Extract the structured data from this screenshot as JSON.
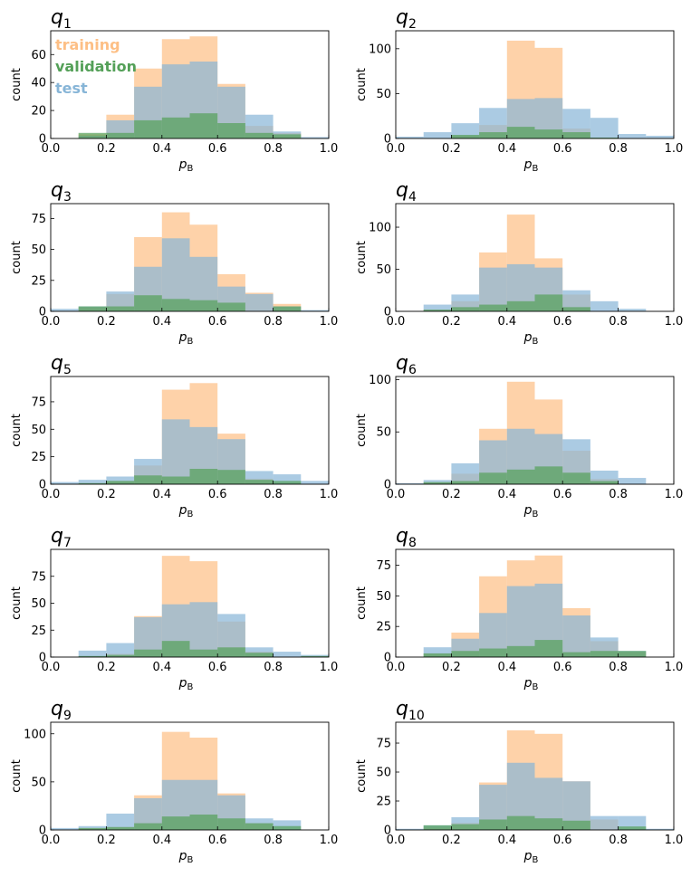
{
  "legend": [
    {
      "name": "training",
      "color": "#fdbf85"
    },
    {
      "name": "validation",
      "color": "#54a058"
    },
    {
      "name": "test",
      "color": "#87b5d7"
    }
  ],
  "chart_data": [
    {
      "type": "histogram",
      "title_symbol": "q",
      "title_index": "1",
      "xlabel": "p",
      "xlabel_sub": "B",
      "ylabel": "count",
      "xlim": [
        0.0,
        1.0
      ],
      "ylim": [
        0,
        77
      ],
      "yticks": [
        0,
        20,
        40,
        60
      ],
      "xticks": [
        "0.0",
        "0.2",
        "0.4",
        "0.6",
        "0.8",
        "1.0"
      ],
      "bin_edges": [
        0.0,
        0.1,
        0.2,
        0.3,
        0.4,
        0.5,
        0.6,
        0.7,
        0.8,
        0.9,
        1.0
      ],
      "series": [
        {
          "name": "training",
          "values": [
            0,
            3,
            17,
            50,
            71,
            73,
            39,
            9,
            4,
            0
          ]
        },
        {
          "name": "test",
          "values": [
            0,
            2,
            13,
            37,
            53,
            55,
            37,
            17,
            5,
            1
          ]
        },
        {
          "name": "validation",
          "values": [
            0,
            4,
            4,
            13,
            15,
            18,
            11,
            4,
            3,
            0
          ]
        }
      ]
    },
    {
      "type": "histogram",
      "title_symbol": "q",
      "title_index": "2",
      "xlabel": "p",
      "xlabel_sub": "B",
      "ylabel": "count",
      "xlim": [
        0.0,
        1.0
      ],
      "ylim": [
        0,
        120
      ],
      "yticks": [
        0,
        50,
        100
      ],
      "xticks": [
        "0.0",
        "0.2",
        "0.4",
        "0.6",
        "0.8",
        "1.0"
      ],
      "bin_edges": [
        0.0,
        0.1,
        0.2,
        0.3,
        0.4,
        0.5,
        0.6,
        0.7,
        0.8,
        0.9,
        1.0
      ],
      "series": [
        {
          "name": "training",
          "values": [
            0,
            0,
            3,
            15,
            109,
            101,
            11,
            0,
            0,
            0
          ]
        },
        {
          "name": "test",
          "values": [
            2,
            7,
            17,
            34,
            44,
            45,
            33,
            23,
            5,
            3
          ]
        },
        {
          "name": "validation",
          "values": [
            0,
            0,
            4,
            7,
            13,
            10,
            7,
            1,
            0,
            0
          ]
        }
      ]
    },
    {
      "type": "histogram",
      "title_symbol": "q",
      "title_index": "3",
      "xlabel": "p",
      "xlabel_sub": "B",
      "ylabel": "count",
      "xlim": [
        0.0,
        1.0
      ],
      "ylim": [
        0,
        87
      ],
      "yticks": [
        0,
        25,
        50,
        75
      ],
      "xticks": [
        "0.0",
        "0.2",
        "0.4",
        "0.6",
        "0.8",
        "1.0"
      ],
      "bin_edges": [
        0.0,
        0.1,
        0.2,
        0.3,
        0.4,
        0.5,
        0.6,
        0.7,
        0.8,
        0.9,
        1.0
      ],
      "series": [
        {
          "name": "training",
          "values": [
            0,
            3,
            14,
            60,
            80,
            70,
            30,
            15,
            6,
            0
          ]
        },
        {
          "name": "test",
          "values": [
            2,
            4,
            16,
            36,
            59,
            44,
            20,
            14,
            4,
            1
          ]
        },
        {
          "name": "validation",
          "values": [
            0,
            4,
            4,
            13,
            10,
            9,
            7,
            0,
            4,
            0
          ]
        }
      ]
    },
    {
      "type": "histogram",
      "title_symbol": "q",
      "title_index": "4",
      "xlabel": "p",
      "xlabel_sub": "B",
      "ylabel": "count",
      "xlim": [
        0.0,
        1.0
      ],
      "ylim": [
        0,
        128
      ],
      "yticks": [
        0,
        50,
        100
      ],
      "xticks": [
        "0.0",
        "0.2",
        "0.4",
        "0.6",
        "0.8",
        "1.0"
      ],
      "bin_edges": [
        0.0,
        0.1,
        0.2,
        0.3,
        0.4,
        0.5,
        0.6,
        0.7,
        0.8,
        0.9,
        1.0
      ],
      "series": [
        {
          "name": "training",
          "values": [
            0,
            2,
            12,
            70,
            115,
            63,
            20,
            0,
            0,
            0
          ]
        },
        {
          "name": "test",
          "values": [
            0,
            8,
            20,
            52,
            56,
            52,
            25,
            12,
            3,
            0
          ]
        },
        {
          "name": "validation",
          "values": [
            0,
            2,
            5,
            8,
            12,
            20,
            5,
            0,
            0,
            0
          ]
        }
      ]
    },
    {
      "type": "histogram",
      "title_symbol": "q",
      "title_index": "5",
      "xlabel": "p",
      "xlabel_sub": "B",
      "ylabel": "count",
      "xlim": [
        0.0,
        1.0
      ],
      "ylim": [
        0,
        98
      ],
      "yticks": [
        0,
        25,
        50,
        75
      ],
      "xticks": [
        "0.0",
        "0.2",
        "0.4",
        "0.6",
        "0.8",
        "1.0"
      ],
      "bin_edges": [
        0.0,
        0.1,
        0.2,
        0.3,
        0.4,
        0.5,
        0.6,
        0.7,
        0.8,
        0.9,
        1.0
      ],
      "series": [
        {
          "name": "training",
          "values": [
            0,
            0,
            3,
            17,
            86,
            92,
            46,
            5,
            0,
            0
          ]
        },
        {
          "name": "test",
          "values": [
            2,
            4,
            7,
            23,
            59,
            52,
            41,
            12,
            9,
            3
          ]
        },
        {
          "name": "validation",
          "values": [
            0,
            1,
            3,
            8,
            7,
            14,
            13,
            4,
            3,
            0
          ]
        }
      ]
    },
    {
      "type": "histogram",
      "title_symbol": "q",
      "title_index": "6",
      "xlabel": "p",
      "xlabel_sub": "B",
      "ylabel": "count",
      "xlim": [
        0.0,
        1.0
      ],
      "ylim": [
        0,
        103
      ],
      "yticks": [
        0,
        50,
        100
      ],
      "xticks": [
        "0.0",
        "0.2",
        "0.4",
        "0.6",
        "0.8",
        "1.0"
      ],
      "bin_edges": [
        0.0,
        0.1,
        0.2,
        0.3,
        0.4,
        0.5,
        0.6,
        0.7,
        0.8,
        0.9,
        1.0
      ],
      "series": [
        {
          "name": "training",
          "values": [
            0,
            2,
            10,
            53,
            98,
            81,
            32,
            5,
            0,
            0
          ]
        },
        {
          "name": "test",
          "values": [
            1,
            4,
            20,
            42,
            53,
            48,
            43,
            13,
            6,
            0
          ]
        },
        {
          "name": "validation",
          "values": [
            0,
            2,
            3,
            11,
            14,
            17,
            11,
            3,
            0,
            0
          ]
        }
      ]
    },
    {
      "type": "histogram",
      "title_symbol": "q",
      "title_index": "7",
      "xlabel": "p",
      "xlabel_sub": "B",
      "ylabel": "count",
      "xlim": [
        0.0,
        1.0
      ],
      "ylim": [
        0,
        100
      ],
      "yticks": [
        0,
        25,
        50,
        75
      ],
      "xticks": [
        "0.0",
        "0.2",
        "0.4",
        "0.6",
        "0.8",
        "1.0"
      ],
      "bin_edges": [
        0.0,
        0.1,
        0.2,
        0.3,
        0.4,
        0.5,
        0.6,
        0.7,
        0.8,
        0.9,
        1.0
      ],
      "series": [
        {
          "name": "training",
          "values": [
            0,
            0,
            3,
            38,
            94,
            89,
            33,
            5,
            0,
            0
          ]
        },
        {
          "name": "test",
          "values": [
            0,
            6,
            13,
            37,
            49,
            51,
            40,
            9,
            5,
            2
          ]
        },
        {
          "name": "validation",
          "values": [
            0,
            1,
            2,
            7,
            15,
            7,
            9,
            4,
            0,
            1
          ]
        }
      ]
    },
    {
      "type": "histogram",
      "title_symbol": "q",
      "title_index": "8",
      "xlabel": "p",
      "xlabel_sub": "B",
      "ylabel": "count",
      "xlim": [
        0.0,
        1.0
      ],
      "ylim": [
        0,
        88
      ],
      "yticks": [
        0,
        25,
        50,
        75
      ],
      "xticks": [
        "0.0",
        "0.2",
        "0.4",
        "0.6",
        "0.8",
        "1.0"
      ],
      "bin_edges": [
        0.0,
        0.1,
        0.2,
        0.3,
        0.4,
        0.5,
        0.6,
        0.7,
        0.8,
        0.9,
        1.0
      ],
      "series": [
        {
          "name": "training",
          "values": [
            0,
            3,
            20,
            66,
            79,
            83,
            40,
            13,
            4,
            0
          ]
        },
        {
          "name": "test",
          "values": [
            0,
            8,
            15,
            36,
            58,
            60,
            34,
            16,
            5,
            0
          ]
        },
        {
          "name": "validation",
          "values": [
            0,
            3,
            5,
            7,
            9,
            14,
            4,
            5,
            5,
            0
          ]
        }
      ]
    },
    {
      "type": "histogram",
      "title_symbol": "q",
      "title_index": "9",
      "xlabel": "p",
      "xlabel_sub": "B",
      "ylabel": "count",
      "xlim": [
        0.0,
        1.0
      ],
      "ylim": [
        0,
        112
      ],
      "yticks": [
        0,
        50,
        100
      ],
      "xticks": [
        "0.0",
        "0.2",
        "0.4",
        "0.6",
        "0.8",
        "1.0"
      ],
      "bin_edges": [
        0.0,
        0.1,
        0.2,
        0.3,
        0.4,
        0.5,
        0.6,
        0.7,
        0.8,
        0.9,
        1.0
      ],
      "series": [
        {
          "name": "training",
          "values": [
            0,
            2,
            3,
            36,
            102,
            96,
            38,
            7,
            0,
            0
          ]
        },
        {
          "name": "test",
          "values": [
            2,
            4,
            17,
            33,
            52,
            52,
            36,
            12,
            10,
            0
          ]
        },
        {
          "name": "validation",
          "values": [
            0,
            2,
            3,
            7,
            14,
            16,
            12,
            7,
            4,
            0
          ]
        }
      ]
    },
    {
      "type": "histogram",
      "title_symbol": "q",
      "title_index": "10",
      "xlabel": "p",
      "xlabel_sub": "B",
      "ylabel": "count",
      "xlim": [
        0.0,
        1.0
      ],
      "ylim": [
        0,
        93
      ],
      "yticks": [
        0,
        25,
        50,
        75
      ],
      "xticks": [
        "0.0",
        "0.2",
        "0.4",
        "0.6",
        "0.8",
        "1.0"
      ],
      "bin_edges": [
        0.0,
        0.1,
        0.2,
        0.3,
        0.4,
        0.5,
        0.6,
        0.7,
        0.8,
        0.9,
        1.0
      ],
      "series": [
        {
          "name": "training",
          "values": [
            0,
            2,
            6,
            41,
            86,
            83,
            42,
            9,
            0,
            0
          ]
        },
        {
          "name": "test",
          "values": [
            1,
            4,
            11,
            39,
            58,
            45,
            42,
            12,
            12,
            1
          ]
        },
        {
          "name": "validation",
          "values": [
            0,
            4,
            5,
            9,
            12,
            10,
            8,
            0,
            3,
            0
          ]
        }
      ]
    }
  ]
}
